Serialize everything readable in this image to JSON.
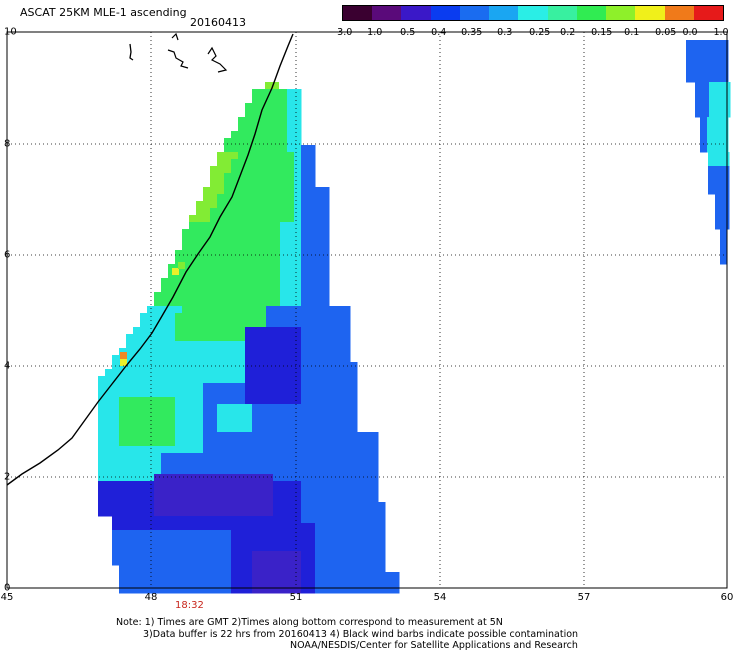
{
  "header": {
    "title": "ASCAT 25KM MLE-1 ascending",
    "date": "20160413"
  },
  "colorbar": {
    "labels": [
      "-3.0",
      "-1.0",
      "-0.5",
      "-0.4",
      "-0.35",
      "-0.3",
      "-0.25",
      "-0.2",
      "-0.15",
      "-0.1",
      "-0.05",
      "0.0",
      "1.0"
    ],
    "colors": [
      "#3a0030",
      "#5a0a7a",
      "#3a18c8",
      "#0a3cf0",
      "#1a6cf0",
      "#1aa6f2",
      "#2aeee6",
      "#38f0a0",
      "#30ec52",
      "#8ef02a",
      "#f0f01a",
      "#f07a1a",
      "#e61a1a"
    ]
  },
  "axes": {
    "x_ticks": [
      "45",
      "48",
      "51",
      "54",
      "57",
      "60"
    ],
    "y_ticks": [
      "0",
      "2",
      "4",
      "6",
      "8",
      "10"
    ],
    "time_label": "18:32"
  },
  "notes": {
    "line1": "Note: 1) Times are GMT 2)Times along bottom correspond to measurement at 5N",
    "line2": "3)Data buffer is 22 hrs from 20160413 4) Black wind barbs indicate possible contamination",
    "line3": "NOAA/NESDIS/Center for Satellite Applications and Research"
  },
  "palette": {
    "dark_blue": "#1f20d8",
    "purple_blue": "#3a22c8",
    "blue": "#1e64f0",
    "cyan": "#28e6ea",
    "green": "#32ea5e",
    "lime": "#82ec34",
    "yellow": "#eaf02a",
    "orange": "#f08a24"
  }
}
